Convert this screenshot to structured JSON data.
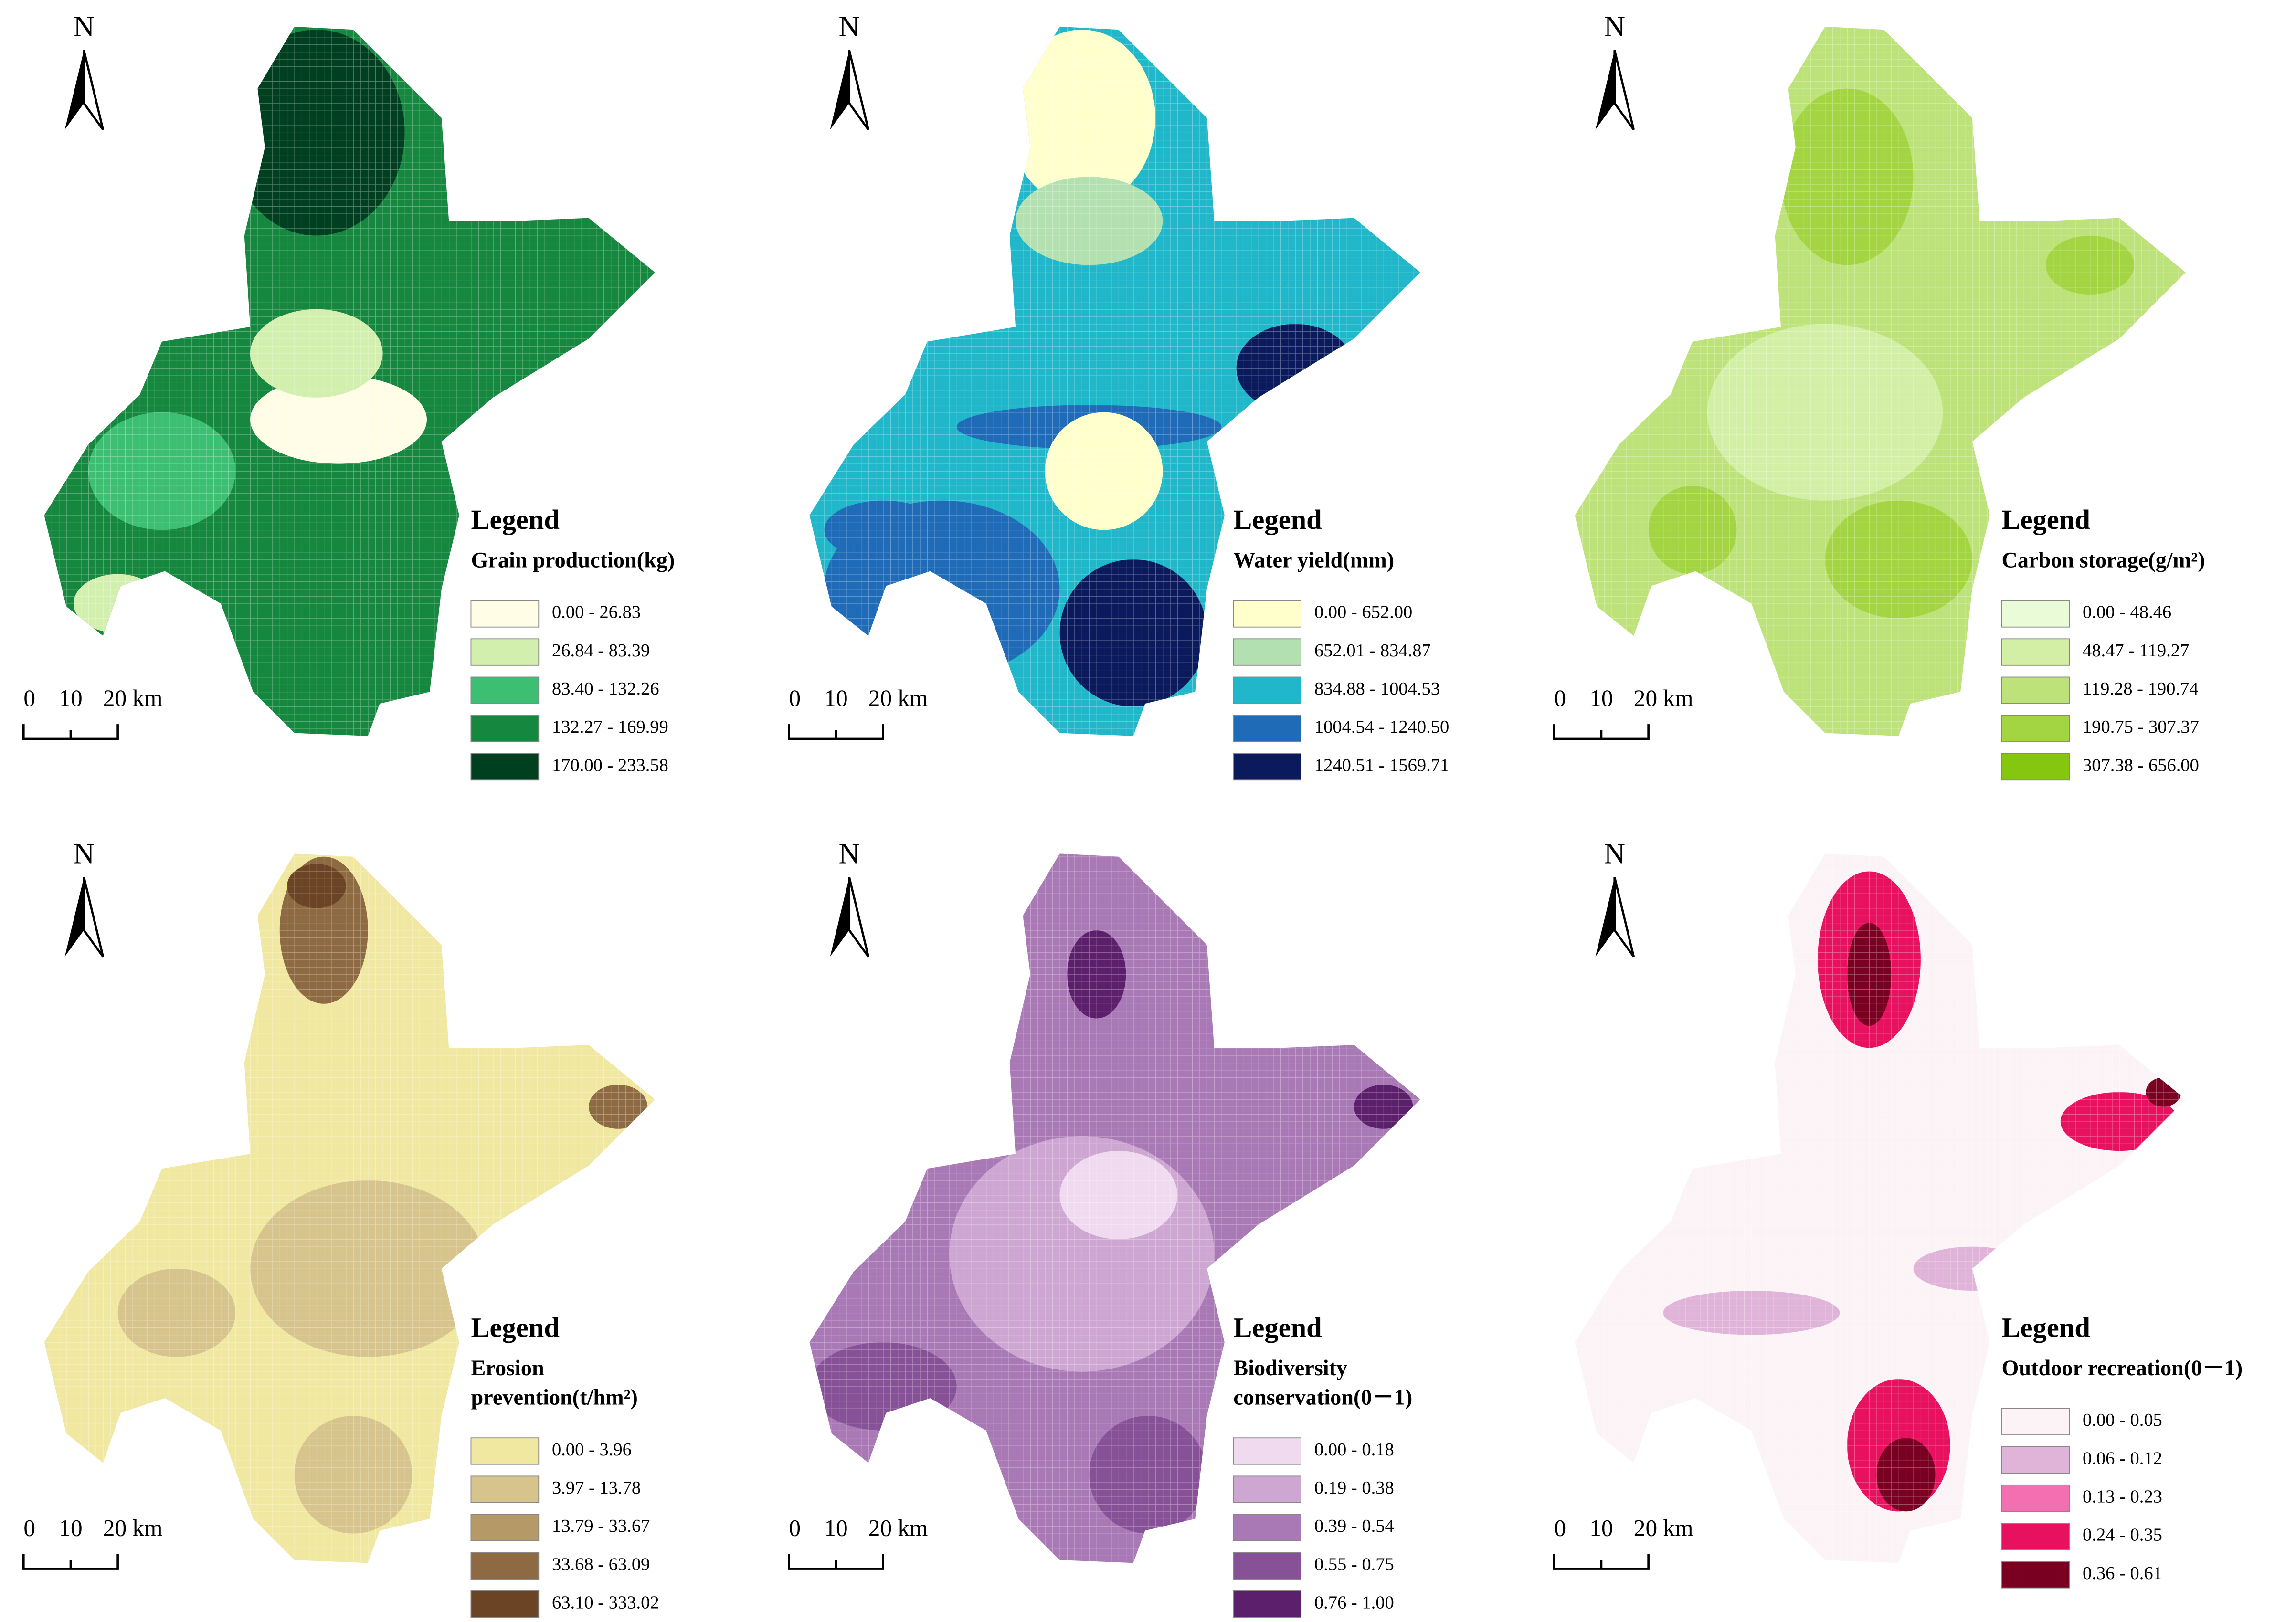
{
  "panels": [
    {
      "north": "N",
      "scale": {
        "labels": [
          "0",
          "10",
          "20 km"
        ]
      },
      "legend": {
        "title": "Legend",
        "label_lines": [
          "Grain production(kg)"
        ],
        "classes": [
          {
            "label": "0.00 - 26.83",
            "color": "#fffde6"
          },
          {
            "label": "26.84 - 83.39",
            "color": "#d2efae"
          },
          {
            "label": "83.40 - 132.26",
            "color": "#3dbf73"
          },
          {
            "label": "132.27 - 169.99",
            "color": "#16873f"
          },
          {
            "label": "170.00 - 233.58",
            "color": "#004020"
          }
        ]
      }
    },
    {
      "north": "N",
      "scale": {
        "labels": [
          "0",
          "10",
          "20 km"
        ]
      },
      "legend": {
        "title": "Legend",
        "label_lines": [
          "Water yield(mm)"
        ],
        "classes": [
          {
            "label": "0.00 - 652.00",
            "color": "#ffffcc"
          },
          {
            "label": "652.01 - 834.87",
            "color": "#b3e0b0"
          },
          {
            "label": "834.88 - 1004.53",
            "color": "#1fb7c9"
          },
          {
            "label": "1004.54 - 1240.50",
            "color": "#1f6bb8"
          },
          {
            "label": "1240.51 - 1569.71",
            "color": "#0a1a5c"
          }
        ]
      }
    },
    {
      "north": "N",
      "scale": {
        "labels": [
          "0",
          "10",
          "20 km"
        ]
      },
      "legend": {
        "title": "Legend",
        "label_lines": [
          "Carbon storage(g/m²)"
        ],
        "classes": [
          {
            "label": "0.00 - 48.46",
            "color": "#eafbd8"
          },
          {
            "label": "48.47 - 119.27",
            "color": "#d3efa6"
          },
          {
            "label": "119.28 - 190.74",
            "color": "#bde27a"
          },
          {
            "label": "190.75 - 307.37",
            "color": "#a3d441"
          },
          {
            "label": "307.38 - 656.00",
            "color": "#85c70f"
          }
        ]
      }
    },
    {
      "north": "N",
      "scale": {
        "labels": [
          "0",
          "10",
          "20 km"
        ]
      },
      "legend": {
        "title": "Legend",
        "label_lines": [
          "Erosion",
          "prevention(t/hm²)"
        ],
        "classes": [
          {
            "label": "0.00 - 3.96",
            "color": "#f0e8a0"
          },
          {
            "label": "3.97 - 13.78",
            "color": "#d6c48c"
          },
          {
            "label": "13.79 - 33.67",
            "color": "#b59a68"
          },
          {
            "label": "33.68 - 63.09",
            "color": "#8e6a42"
          },
          {
            "label": "63.10 - 333.02",
            "color": "#6b4425"
          }
        ]
      }
    },
    {
      "north": "N",
      "scale": {
        "labels": [
          "0",
          "10",
          "20 km"
        ]
      },
      "legend": {
        "title": "Legend",
        "label_lines": [
          "Biodiversity",
          "conservation(0－1)"
        ],
        "classes": [
          {
            "label": "0.00 - 0.18",
            "color": "#efdaf0"
          },
          {
            "label": "0.19 - 0.38",
            "color": "#cda6d2"
          },
          {
            "label": "0.39 - 0.54",
            "color": "#a979b6"
          },
          {
            "label": "0.55 - 0.75",
            "color": "#875197"
          },
          {
            "label": "0.76 - 1.00",
            "color": "#5c1f6c"
          }
        ]
      }
    },
    {
      "north": "N",
      "scale": {
        "labels": [
          "0",
          "10",
          "20 km"
        ]
      },
      "legend": {
        "title": "Legend",
        "label_lines": [
          "Outdoor recreation(0－1)"
        ],
        "classes": [
          {
            "label": "0.00 - 0.05",
            "color": "#fbf3f6"
          },
          {
            "label": "0.06 - 0.12",
            "color": "#e0b4d8"
          },
          {
            "label": "0.13 - 0.23",
            "color": "#f36fb2"
          },
          {
            "label": "0.24 - 0.35",
            "color": "#e8115f"
          },
          {
            "label": "0.36 - 0.61",
            "color": "#7a0021"
          }
        ]
      }
    }
  ]
}
